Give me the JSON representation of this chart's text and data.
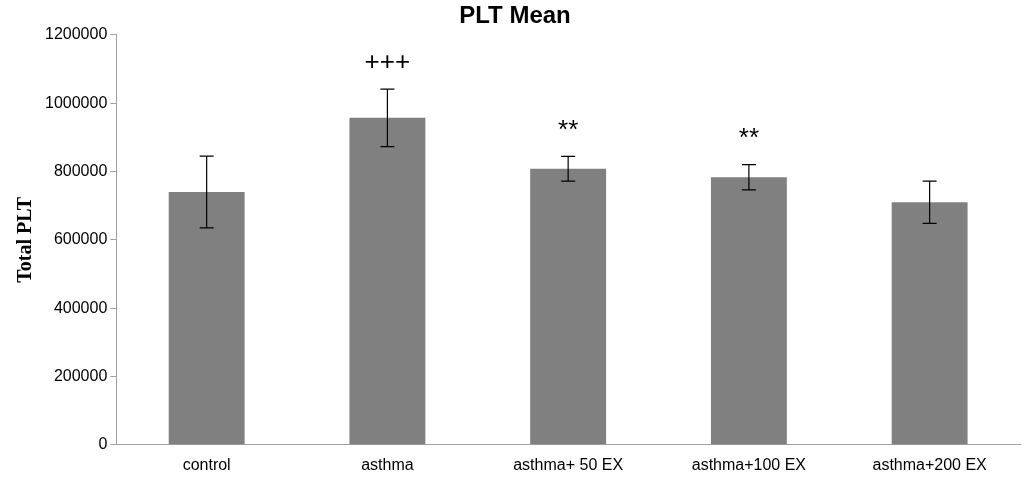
{
  "chart_data": {
    "type": "bar",
    "title": "PLT Mean",
    "ylabel": "Total PLT",
    "categories": [
      "control",
      "asthma",
      "asthma+ 50 EX",
      "asthma+100 EX",
      "asthma+200 EX"
    ],
    "values": [
      740000,
      957000,
      808000,
      783000,
      710000
    ],
    "errors": [
      105000,
      84000,
      36000,
      37000,
      62000
    ],
    "color": "#808080",
    "ylim": [
      0,
      1200000
    ],
    "yticks": [
      0,
      200000,
      400000,
      600000,
      800000,
      1000000,
      1200000
    ],
    "grid": false,
    "legend": false,
    "annotations": [
      {
        "text": "+++",
        "x": "asthma",
        "y": 957000
      },
      {
        "text": "**",
        "x": "asthma+ 50 EX",
        "y": 808000
      },
      {
        "text": "**",
        "x": "asthma+100 EX",
        "y": 783000
      }
    ]
  }
}
